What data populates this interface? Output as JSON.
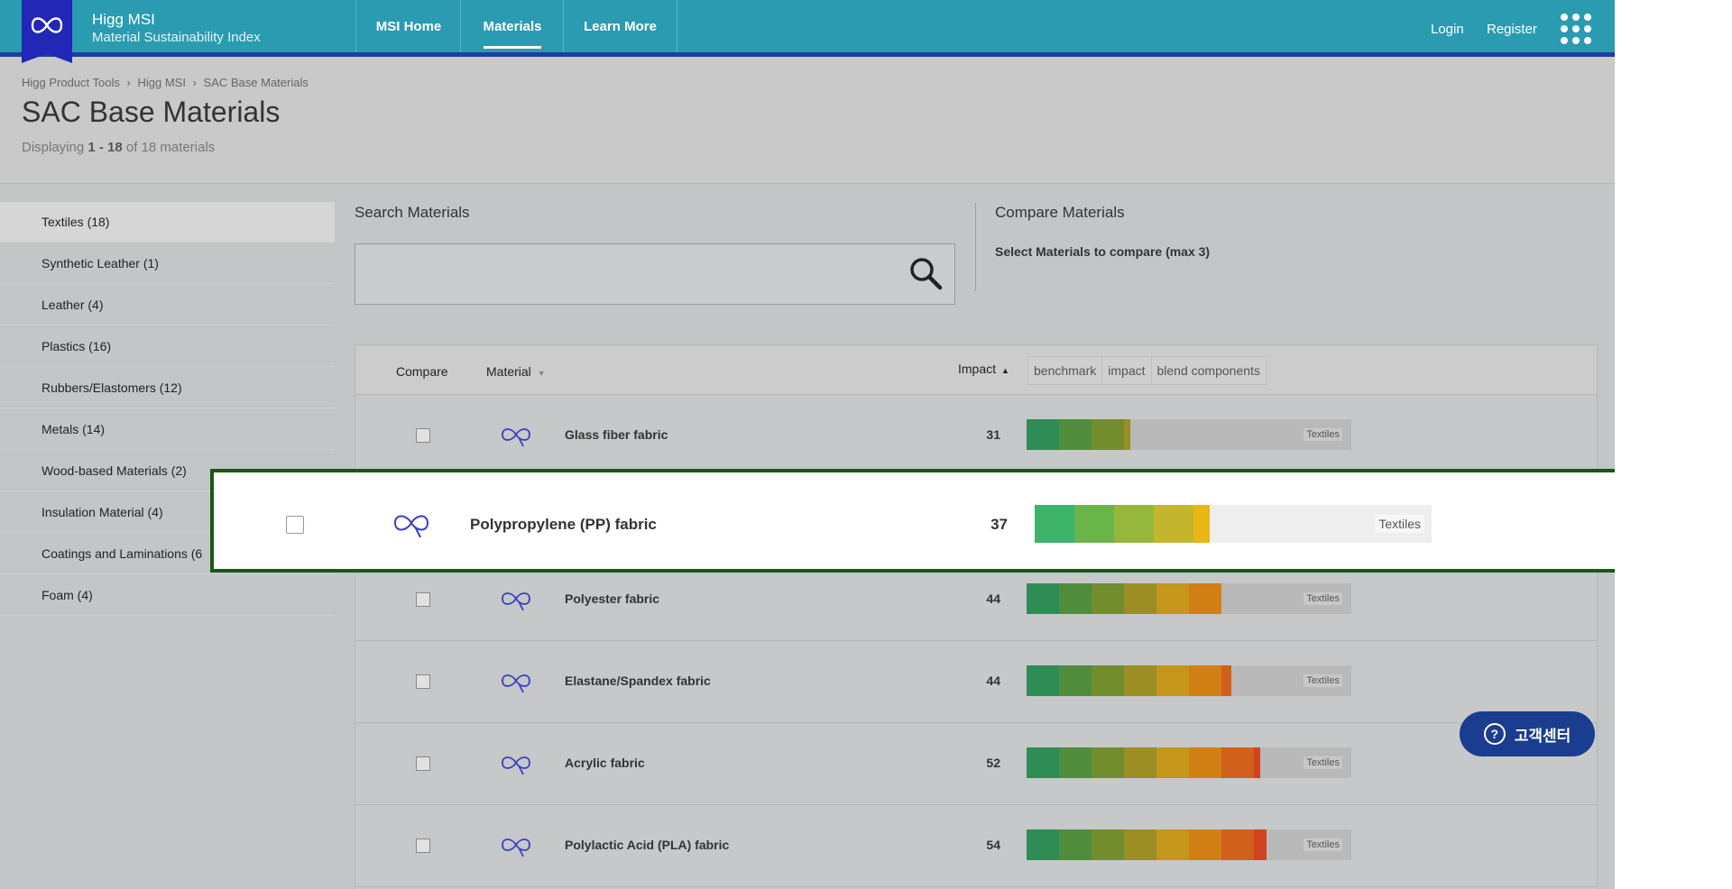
{
  "header": {
    "brand_title": "Higg MSI",
    "brand_subtitle": "Material Sustainability Index",
    "nav": [
      "MSI Home",
      "Materials",
      "Learn More"
    ],
    "active_nav": "Materials",
    "login": "Login",
    "register": "Register",
    "apps_icon": "grid-apps-icon"
  },
  "breadcrumb": [
    "Higg Product Tools",
    "›",
    "Higg MSI",
    "›",
    "SAC Base Materials"
  ],
  "page": {
    "title": "SAC Base Materials",
    "count_prefix": "Displaying",
    "count_range": "1 - 18",
    "count_suffix": "of 18 materials"
  },
  "sidebar": {
    "items": [
      {
        "label": "Textiles (18)",
        "active": true
      },
      {
        "label": "Synthetic Leather (1)"
      },
      {
        "label": "Leather (4)"
      },
      {
        "label": "Plastics (16)"
      },
      {
        "label": "Rubbers/Elastomers (12)"
      },
      {
        "label": "Metals (14)"
      },
      {
        "label": "Wood-based Materials (2)"
      },
      {
        "label": "Insulation Material (4)"
      },
      {
        "label": "Coatings and Laminations (6"
      },
      {
        "label": "Foam (4)"
      }
    ]
  },
  "search": {
    "label": "Search Materials",
    "value": "",
    "icon": "search-icon"
  },
  "compare": {
    "title": "Compare Materials",
    "hint": "Select Materials to compare (max 3)"
  },
  "table": {
    "headers": {
      "compare": "Compare",
      "material": "Material",
      "impact": "Impact",
      "impact_sort": "▲",
      "material_sort": "▼"
    },
    "view_tabs": [
      "benchmark",
      "impact",
      "blend components"
    ],
    "rows": [
      {
        "name": "Glass fiber fabric",
        "impact": "31",
        "category": "Textiles",
        "fill": 0.32
      },
      {
        "name": "Polypropylene (PP) fabric",
        "impact": "37",
        "category": "Textiles",
        "fill": 0.44,
        "highlighted": true
      },
      {
        "name": "Polyester fabric",
        "impact": "44",
        "category": "Textiles",
        "fill": 0.6
      },
      {
        "name": "Elastane/Spandex fabric",
        "impact": "44",
        "category": "Textiles",
        "fill": 0.63
      },
      {
        "name": "Acrylic fabric",
        "impact": "52",
        "category": "Textiles",
        "fill": 0.72
      },
      {
        "name": "Polylactic Acid (PLA) fabric",
        "impact": "54",
        "category": "Textiles",
        "fill": 0.74
      }
    ]
  },
  "help_button": {
    "label": "고객센터",
    "icon": "question-circle-icon"
  },
  "colors": {
    "header": "#2a9bb0",
    "header_underline": "#1d3f9e",
    "logo": "#2327b5",
    "highlight_border": "#1c5716",
    "help_button": "#1b3d8f",
    "impact_scale": [
      "#2e8c55",
      "#4f8c3c",
      "#738d2e",
      "#9a8e24",
      "#c4961b",
      "#d27f15",
      "#d1601a",
      "#d2431f"
    ]
  }
}
